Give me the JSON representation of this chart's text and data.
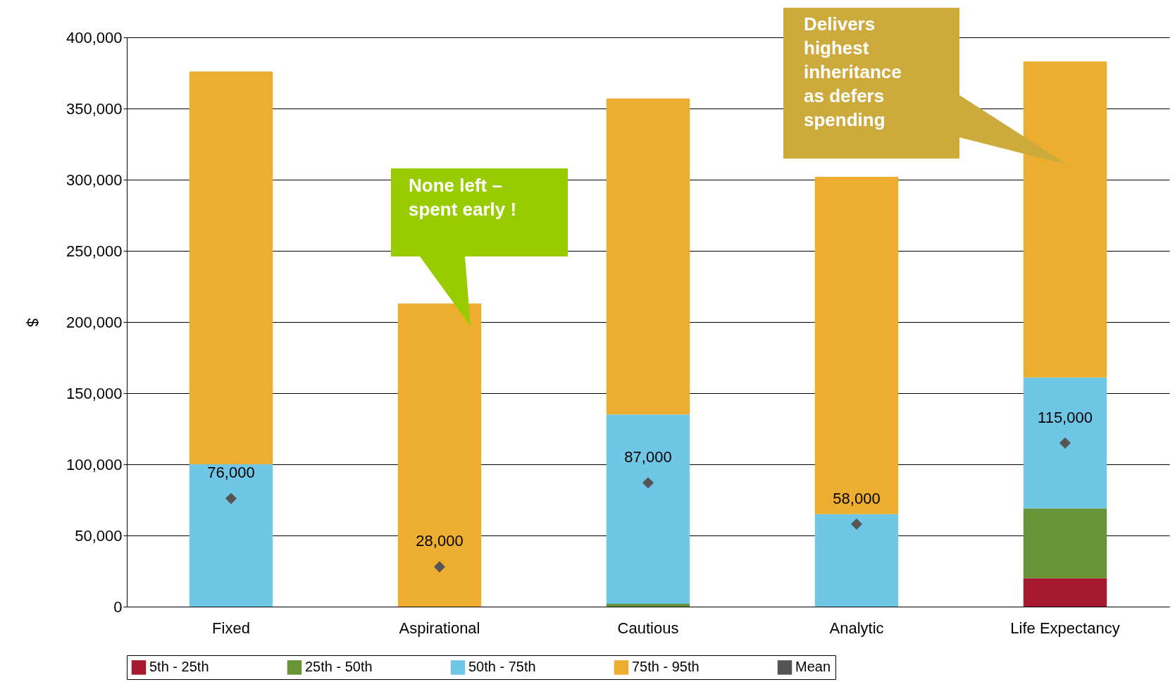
{
  "chart_data": {
    "type": "bar",
    "stacked": true,
    "ylabel": "$",
    "categories": [
      "Fixed",
      "Aspirational",
      "Cautious",
      "Analytic",
      "Life Expectancy"
    ],
    "ylim": [
      0,
      400000
    ],
    "yticks": [
      0,
      {
        "value": 50000,
        "label": "50,000"
      },
      {
        "value": 100000,
        "label": "100,000"
      },
      {
        "value": 150000,
        "label": "150,000"
      },
      {
        "value": 200000,
        "label": "200,000"
      },
      {
        "value": 250000,
        "label": "250,000"
      },
      {
        "value": 300000,
        "label": "300,000"
      },
      {
        "value": 350000,
        "label": "350,000"
      },
      {
        "value": 400000,
        "label": "400,000"
      }
    ],
    "grid": "y",
    "legend": "bottom",
    "series": [
      {
        "name": "5th - 25th",
        "color": "#a6192e",
        "values": [
          null,
          null,
          null,
          null,
          20000
        ]
      },
      {
        "name": "25th - 50th",
        "color": "#679437",
        "values": [
          null,
          null,
          2000,
          null,
          49000
        ]
      },
      {
        "name": "50th - 75th",
        "color": "#70c6e5",
        "values": [
          100000,
          null,
          133000,
          65000,
          92000
        ]
      },
      {
        "name": "75th - 95th",
        "color": "#edae30",
        "values": [
          276000,
          213000,
          222000,
          237000,
          222000
        ]
      },
      {
        "name": "Mean",
        "type": "scatter",
        "marker": "diamond",
        "color": "#555555",
        "x": [
          "Fixed",
          "Aspirational",
          "Cautious",
          "Analytic",
          "Life Expectancy"
        ],
        "values": [
          76000,
          28000,
          87000,
          58000,
          115000
        ],
        "value_labels": [
          "76,000",
          "28,000",
          "87,000",
          "58,000",
          "115,000"
        ]
      }
    ],
    "annotations": [
      "None left – spent early !",
      "Delivers highest inheritance as defers spending"
    ]
  }
}
